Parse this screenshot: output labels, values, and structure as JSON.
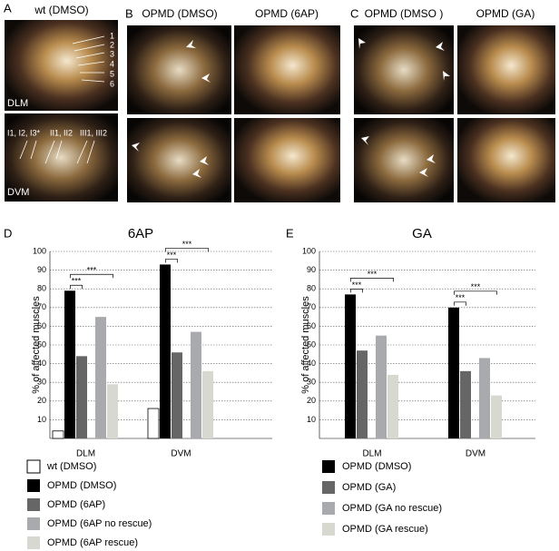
{
  "panel_a": {
    "label": "A",
    "caption": "wt (DMSO)",
    "dlm_label": "DLM",
    "dvm_label": "DVM",
    "muscle_numbers": [
      "1",
      "2",
      "3",
      "4",
      "5",
      "6"
    ],
    "dvm_groups": [
      "I1, I2, I3*",
      "II1, II2",
      "III1, III2"
    ]
  },
  "panel_b": {
    "label": "B",
    "captions": [
      "OPMD (DMSO)",
      "OPMD (6AP)"
    ]
  },
  "panel_c": {
    "label": "C",
    "captions": [
      "OPMD (DMSO )",
      "OPMD (GA)"
    ]
  },
  "chart_data": [
    {
      "type": "bar",
      "panel_label": "D",
      "title": "6AP",
      "y_label": "% of affected muscles",
      "categories": [
        "DLM",
        "DVM"
      ],
      "series": [
        {
          "name": "wt (DMSO)",
          "color": "#ffffff",
          "values": [
            4,
            16
          ]
        },
        {
          "name": "OPMD (DMSO)",
          "color": "#000000",
          "values": [
            79,
            93
          ]
        },
        {
          "name": "OPMD (6AP)",
          "color": "#666666",
          "values": [
            44,
            46
          ]
        },
        {
          "name": "OPMD (6AP no rescue)",
          "color": "#a9aaae",
          "values": [
            65,
            57
          ]
        },
        {
          "name": "OPMD (6AP rescue)",
          "color": "#d7d9d0",
          "values": [
            29,
            36
          ]
        }
      ],
      "annotations": [
        "***",
        "***",
        "***",
        "***"
      ],
      "ylim": [
        0,
        100
      ],
      "yticks": [
        10,
        20,
        30,
        40,
        50,
        60,
        70,
        80,
        90,
        100
      ],
      "grid": true
    },
    {
      "type": "bar",
      "panel_label": "E",
      "title": "GA",
      "y_label": "% of affected muscles",
      "categories": [
        "DLM",
        "DVM"
      ],
      "series": [
        {
          "name": "OPMD (DMSO)",
          "color": "#000000",
          "values": [
            77,
            70
          ]
        },
        {
          "name": "OPMD (GA)",
          "color": "#666666",
          "values": [
            47,
            36
          ]
        },
        {
          "name": "OPMD (GA no rescue)",
          "color": "#a9aaae",
          "values": [
            55,
            43
          ]
        },
        {
          "name": "OPMD (GA rescue)",
          "color": "#d7d9d0",
          "values": [
            34,
            23
          ]
        }
      ],
      "annotations": [
        "***",
        "***",
        "***",
        "***"
      ],
      "ylim": [
        0,
        100
      ],
      "yticks": [
        10,
        20,
        30,
        40,
        50,
        60,
        70,
        80,
        90,
        100
      ],
      "grid": true
    }
  ]
}
